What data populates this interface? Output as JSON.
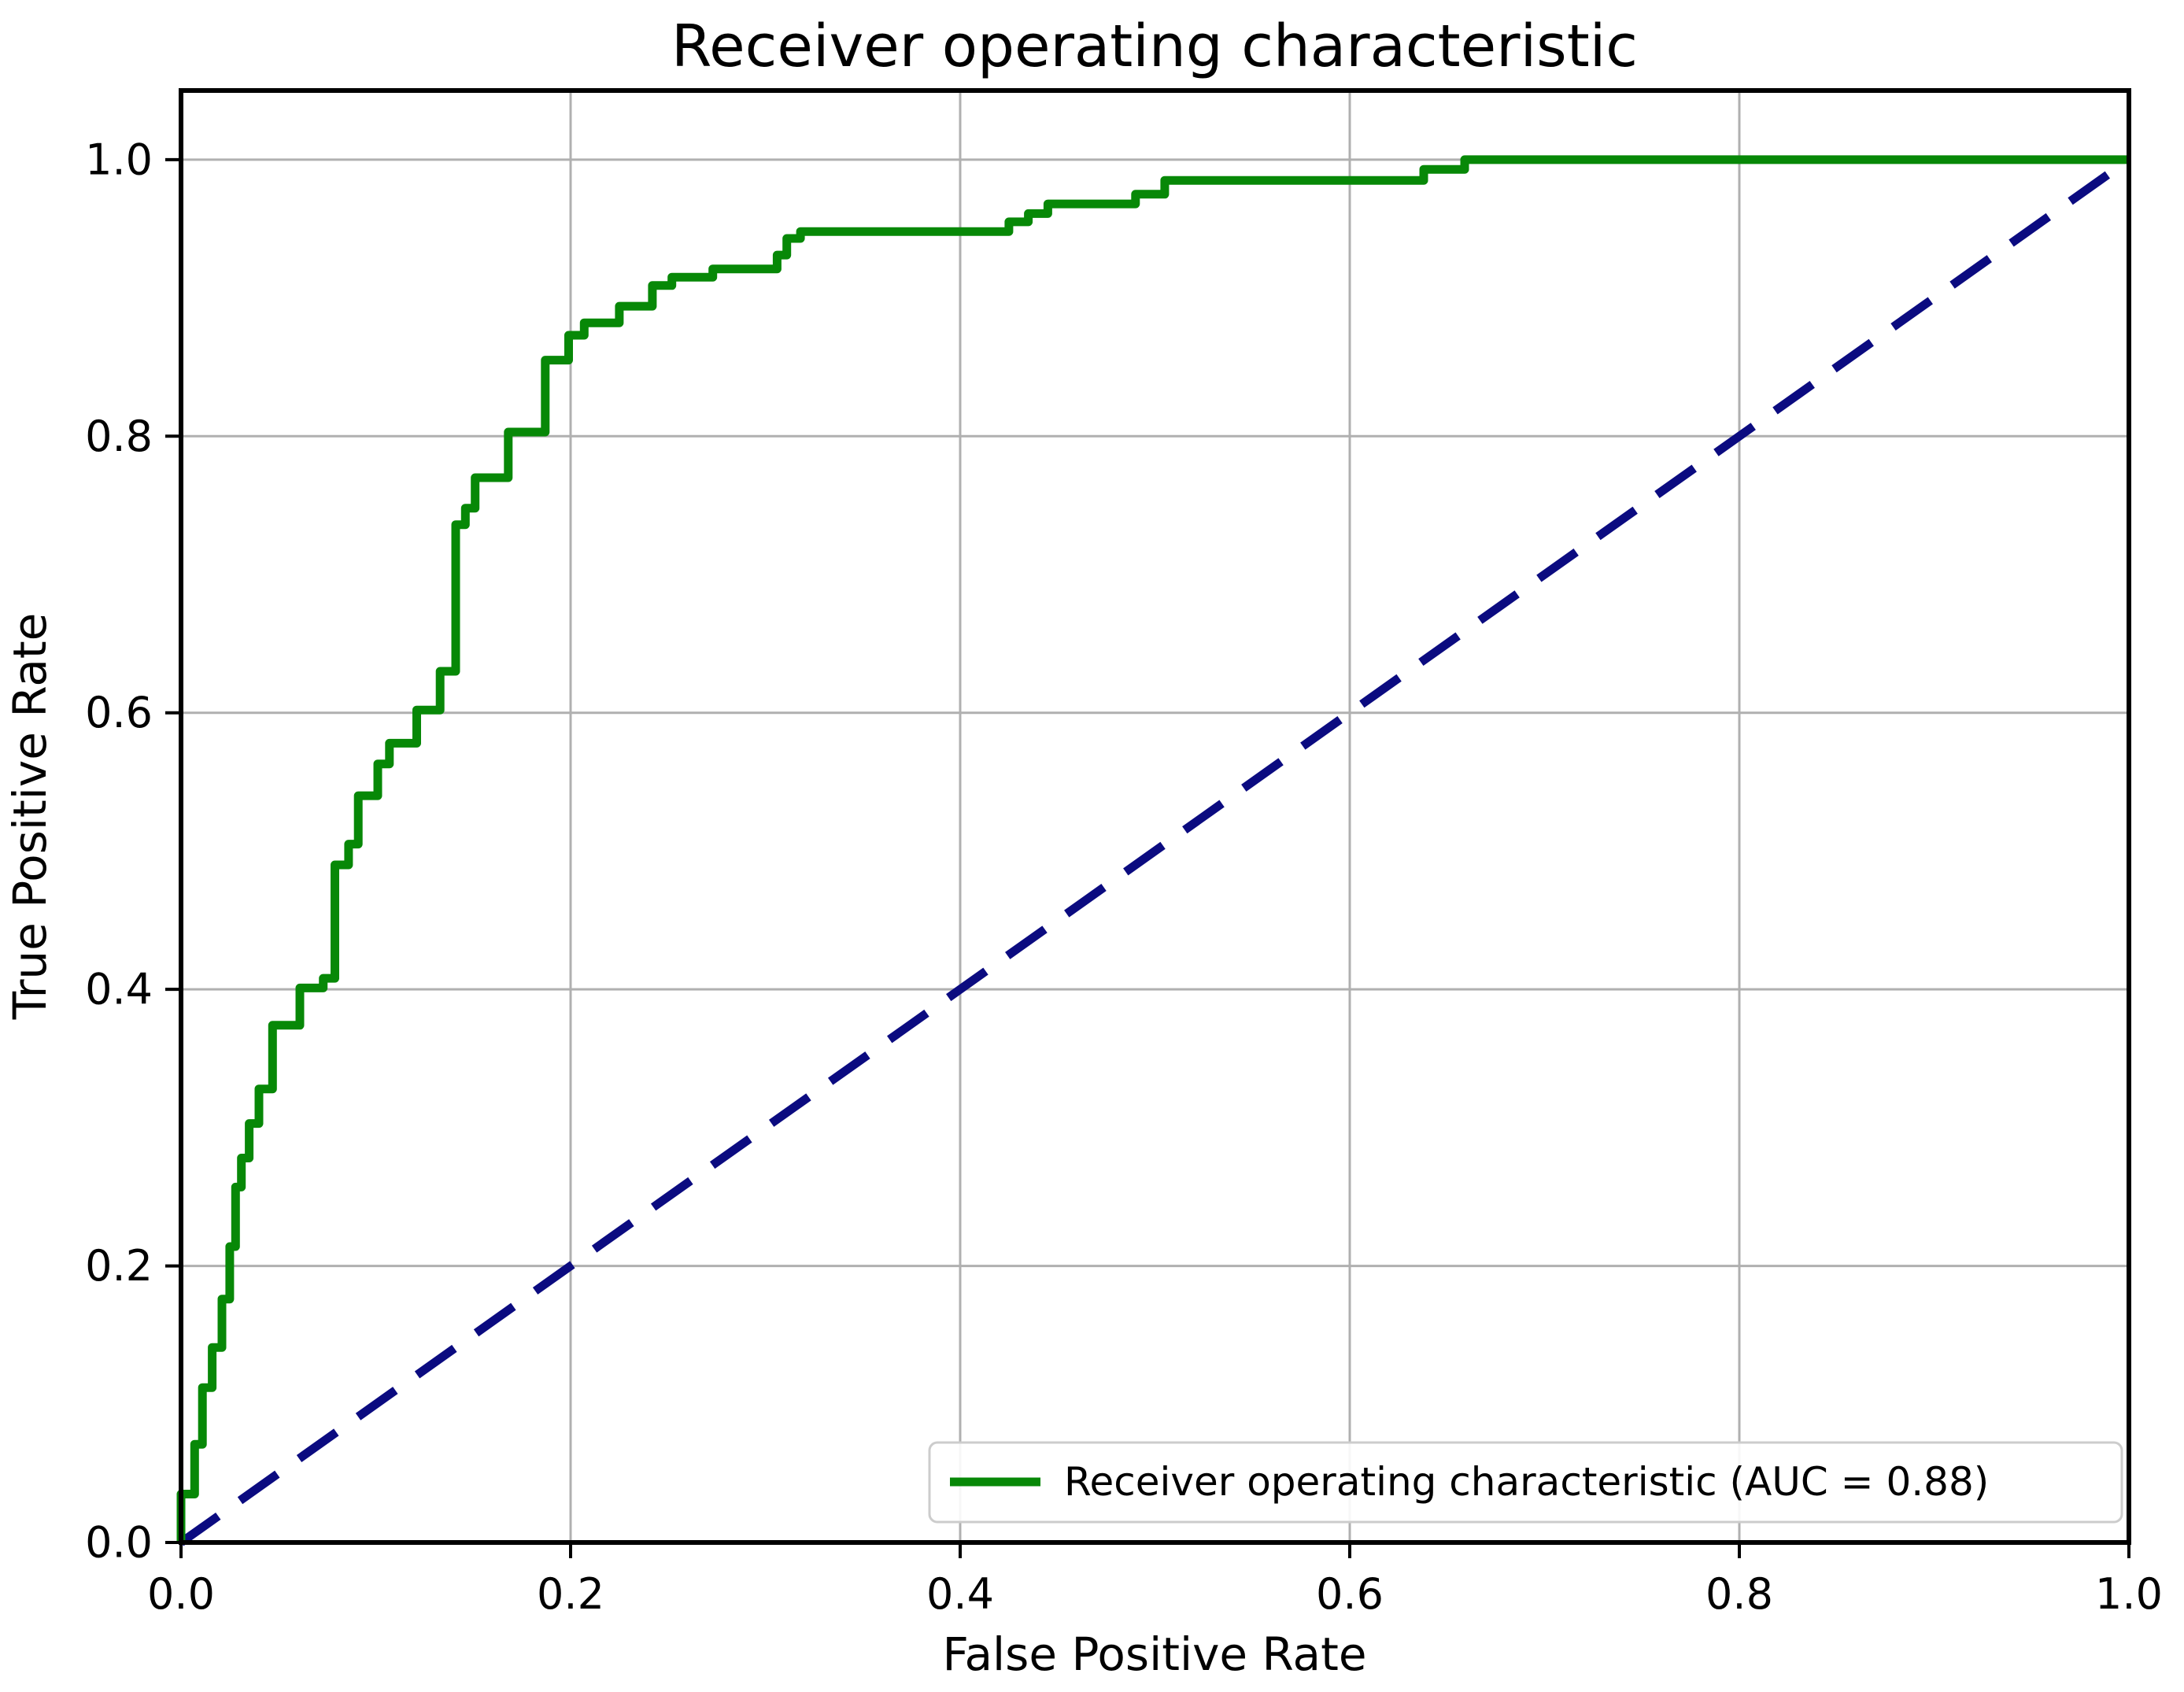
{
  "figure": {
    "title": "Receiver operating characteristic"
  },
  "chart_data": {
    "type": "line",
    "subtype": "roc-step-curve",
    "title": "Receiver operating characteristic",
    "xlabel": "False Positive Rate",
    "ylabel": "True Positive Rate",
    "xlim": [
      0.0,
      1.0
    ],
    "ylim": [
      0.0,
      1.05
    ],
    "x_ticks": [
      "0.0",
      "0.2",
      "0.4",
      "0.6",
      "0.8",
      "1.0"
    ],
    "y_ticks": [
      "0.0",
      "0.2",
      "0.4",
      "0.6",
      "0.8",
      "1.0"
    ],
    "x_tick_values": [
      0.0,
      0.2,
      0.4,
      0.6,
      0.8,
      1.0
    ],
    "y_tick_values": [
      0.0,
      0.2,
      0.4,
      0.6,
      0.8,
      1.0
    ],
    "grid": true,
    "grid_color": "#b0b0b0",
    "spine_color": "#000000",
    "background": "#ffffff",
    "auc": 0.88,
    "legend": {
      "position": "lower right",
      "entries": [
        {
          "label": "Receiver operating characteristic (AUC = 0.88)",
          "color": "#078807",
          "line_style": "solid"
        }
      ]
    },
    "series": [
      {
        "name": "ROC curve",
        "auc": 0.88,
        "color": "#078807",
        "line_width": 11,
        "line_style": "solid",
        "draw": "step-post",
        "points": [
          [
            0.0,
            0.0
          ],
          [
            0.0,
            0.035
          ],
          [
            0.007,
            0.071
          ],
          [
            0.011,
            0.112
          ],
          [
            0.016,
            0.141
          ],
          [
            0.021,
            0.176
          ],
          [
            0.025,
            0.214
          ],
          [
            0.028,
            0.257
          ],
          [
            0.031,
            0.278
          ],
          [
            0.035,
            0.303
          ],
          [
            0.04,
            0.328
          ],
          [
            0.047,
            0.374
          ],
          [
            0.061,
            0.401
          ],
          [
            0.073,
            0.408
          ],
          [
            0.079,
            0.49
          ],
          [
            0.086,
            0.505
          ],
          [
            0.091,
            0.54
          ],
          [
            0.101,
            0.563
          ],
          [
            0.107,
            0.578
          ],
          [
            0.121,
            0.602
          ],
          [
            0.133,
            0.63
          ],
          [
            0.141,
            0.736
          ],
          [
            0.146,
            0.748
          ],
          [
            0.151,
            0.77
          ],
          [
            0.168,
            0.803
          ],
          [
            0.187,
            0.855
          ],
          [
            0.199,
            0.873
          ],
          [
            0.207,
            0.882
          ],
          [
            0.225,
            0.894
          ],
          [
            0.242,
            0.909
          ],
          [
            0.252,
            0.915
          ],
          [
            0.273,
            0.921
          ],
          [
            0.306,
            0.931
          ],
          [
            0.311,
            0.943
          ],
          [
            0.318,
            0.948
          ],
          [
            0.425,
            0.955
          ],
          [
            0.435,
            0.961
          ],
          [
            0.445,
            0.968
          ],
          [
            0.49,
            0.975
          ],
          [
            0.505,
            0.985
          ],
          [
            0.638,
            0.993
          ],
          [
            0.659,
            1.0
          ],
          [
            1.0,
            1.0
          ]
        ]
      },
      {
        "name": "Chance diagonal",
        "color": "#0b0b80",
        "line_width": 11,
        "line_style": "dashed",
        "dash_pattern": "58 34",
        "draw": "line",
        "points": [
          [
            0.0,
            0.0
          ],
          [
            1.0,
            1.0
          ]
        ]
      }
    ]
  }
}
